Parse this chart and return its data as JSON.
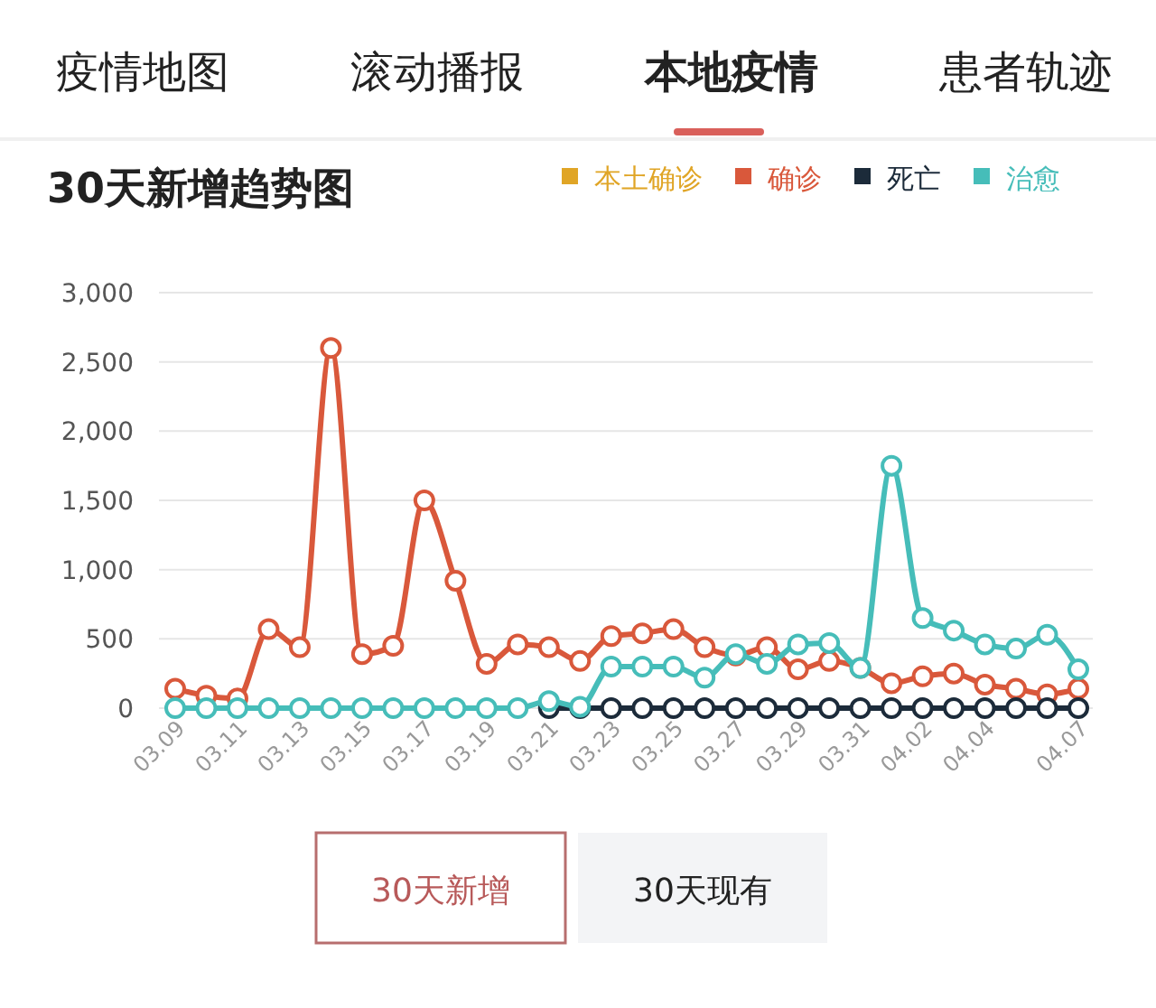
{
  "chart_data": {
    "type": "line",
    "title": "30天新增趋势图",
    "annotations": [
      "疫情地图",
      "滚动播报",
      "本地疫情",
      "患者轨迹",
      "30天新增",
      "30天现有"
    ],
    "categories": [
      "03.09",
      null,
      "03.11",
      null,
      "03.13",
      null,
      "03.15",
      null,
      "03.17",
      null,
      "03.19",
      null,
      "03.21",
      null,
      "03.23",
      null,
      "03.25",
      null,
      "03.27",
      null,
      "03.29",
      null,
      "03.31",
      null,
      "04.02",
      null,
      "04.04",
      null,
      null,
      "04.07"
    ],
    "series": [
      {
        "name": "本土确诊",
        "color": "#e0a526",
        "values": [
          null,
          null,
          null,
          null,
          null,
          null,
          null,
          null,
          null,
          null,
          null,
          null,
          null,
          null,
          null,
          null,
          null,
          null,
          null,
          null,
          null,
          null,
          null,
          null,
          null,
          null,
          null,
          null,
          null,
          null
        ]
      },
      {
        "name": "确诊",
        "color": "#d9583b",
        "values": [
          140,
          90,
          70,
          570,
          440,
          2600,
          390,
          450,
          1500,
          920,
          320,
          460,
          440,
          340,
          520,
          540,
          570,
          440,
          380,
          440,
          280,
          340,
          290,
          180,
          230,
          250,
          170,
          140,
          100,
          140
        ]
      },
      {
        "name": "死亡",
        "color": "#1c2b3a",
        "values": [
          null,
          null,
          null,
          null,
          null,
          null,
          null,
          null,
          null,
          null,
          null,
          null,
          0,
          0,
          0,
          0,
          0,
          0,
          0,
          0,
          0,
          0,
          0,
          0,
          0,
          0,
          0,
          0,
          0,
          0
        ]
      },
      {
        "name": "治愈",
        "color": "#46bdb9",
        "values": [
          0,
          0,
          0,
          0,
          0,
          0,
          0,
          0,
          0,
          0,
          0,
          0,
          50,
          10,
          300,
          300,
          300,
          220,
          390,
          320,
          460,
          470,
          290,
          1750,
          650,
          560,
          460,
          430,
          530,
          280
        ]
      }
    ],
    "ylim": [
      0,
      3000
    ],
    "yticks": [
      0,
      500,
      {
        "value": 1000,
        "label": "1,000"
      },
      {
        "value": 1500,
        "label": "1,500"
      },
      {
        "value": 2000,
        "label": "2,000"
      },
      {
        "value": 2500,
        "label": "2,500"
      },
      {
        "value": 3000,
        "label": "3,000"
      }
    ],
    "grid": "y",
    "legend": "top right",
    "marker": "circle",
    "line_style": "solid"
  }
}
